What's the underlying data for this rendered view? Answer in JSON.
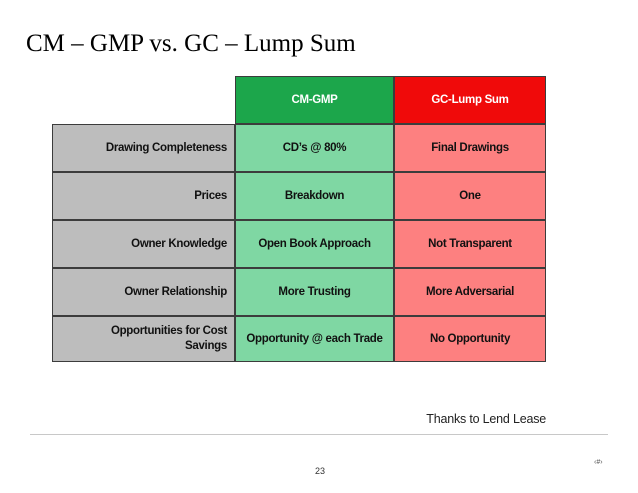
{
  "title": "CM – GMP vs. GC – Lump Sum",
  "table": {
    "headers": [
      "CM-GMP",
      "GC-Lump Sum"
    ],
    "rows": [
      {
        "label": "Drawing Completeness",
        "cm": "CD’s @ 80%",
        "gc": "Final Drawings"
      },
      {
        "label": "Prices",
        "cm": "Breakdown",
        "gc": "One"
      },
      {
        "label": "Owner Knowledge",
        "cm": "Open Book Approach",
        "gc": "Not Transparent"
      },
      {
        "label": "Owner Relationship",
        "cm": "More Trusting",
        "gc": "More Adversarial"
      },
      {
        "label": "Opportunities for Cost Savings",
        "cm": "Opportunity @ each Trade",
        "gc": "No Opportunity"
      }
    ]
  },
  "colors": {
    "cm_header": "#1ca64b",
    "gc_header": "#f00a0a",
    "cm_cell": "#7fd7a3",
    "gc_cell": "#fd8080",
    "label_cell": "#bdbdbd"
  },
  "footer": {
    "credit": "Thanks to Lend Lease",
    "page_number": "23",
    "slide_marker": "‹#›"
  }
}
